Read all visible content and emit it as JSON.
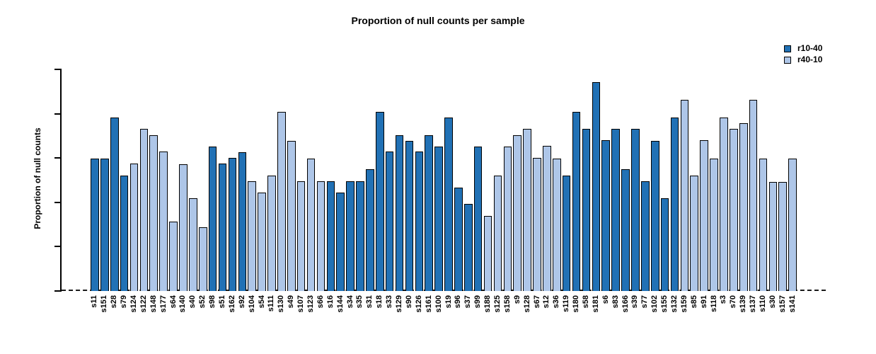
{
  "chart_data": {
    "type": "bar",
    "title": "Proportion of null counts per sample",
    "ylabel": "Proportion of null counts",
    "xlabel": "",
    "ylim": [
      0,
      50
    ],
    "yticks": [
      0,
      10,
      20,
      30,
      40,
      50
    ],
    "grid": false,
    "legend_position": "top-right",
    "zero_line_style": "dashed",
    "axis_color": "#000000",
    "legend": [
      {
        "label": "r10-40",
        "color": "#2171B5"
      },
      {
        "label": "r40-10",
        "color": "#AEC6E8"
      }
    ],
    "samples": [
      {
        "name": "s11",
        "value": 29.9,
        "series": "r10-40"
      },
      {
        "name": "s151",
        "value": 29.9,
        "series": "r10-40"
      },
      {
        "name": "s28",
        "value": 39.2,
        "series": "r10-40"
      },
      {
        "name": "s79",
        "value": 26.1,
        "series": "r10-40"
      },
      {
        "name": "s124",
        "value": 28.7,
        "series": "r40-10"
      },
      {
        "name": "s122",
        "value": 36.6,
        "series": "r40-10"
      },
      {
        "name": "s148",
        "value": 35.2,
        "series": "r40-10"
      },
      {
        "name": "s177",
        "value": 31.4,
        "series": "r40-10"
      },
      {
        "name": "s64",
        "value": 15.6,
        "series": "r40-10"
      },
      {
        "name": "s140",
        "value": 28.6,
        "series": "r40-10"
      },
      {
        "name": "s40",
        "value": 20.9,
        "series": "r40-10"
      },
      {
        "name": "s52",
        "value": 14.3,
        "series": "r40-10"
      },
      {
        "name": "s98",
        "value": 32.6,
        "series": "r10-40"
      },
      {
        "name": "s51",
        "value": 28.7,
        "series": "r10-40"
      },
      {
        "name": "s162",
        "value": 30.0,
        "series": "r10-40"
      },
      {
        "name": "s92",
        "value": 31.3,
        "series": "r10-40"
      },
      {
        "name": "s104",
        "value": 24.7,
        "series": "r40-10"
      },
      {
        "name": "s54",
        "value": 22.2,
        "series": "r40-10"
      },
      {
        "name": "s111",
        "value": 26.1,
        "series": "r40-10"
      },
      {
        "name": "s130",
        "value": 40.4,
        "series": "r40-10"
      },
      {
        "name": "s49",
        "value": 33.9,
        "series": "r40-10"
      },
      {
        "name": "s107",
        "value": 24.7,
        "series": "r40-10"
      },
      {
        "name": "s123",
        "value": 29.9,
        "series": "r40-10"
      },
      {
        "name": "s66",
        "value": 24.7,
        "series": "r40-10"
      },
      {
        "name": "s16",
        "value": 24.7,
        "series": "r10-40"
      },
      {
        "name": "s144",
        "value": 22.2,
        "series": "r10-40"
      },
      {
        "name": "s34",
        "value": 24.7,
        "series": "r10-40"
      },
      {
        "name": "s35",
        "value": 24.7,
        "series": "r10-40"
      },
      {
        "name": "s31",
        "value": 27.4,
        "series": "r10-40"
      },
      {
        "name": "s18",
        "value": 40.4,
        "series": "r10-40"
      },
      {
        "name": "s33",
        "value": 31.4,
        "series": "r10-40"
      },
      {
        "name": "s129",
        "value": 35.2,
        "series": "r10-40"
      },
      {
        "name": "s90",
        "value": 33.8,
        "series": "r10-40"
      },
      {
        "name": "s126",
        "value": 31.4,
        "series": "r10-40"
      },
      {
        "name": "s161",
        "value": 35.1,
        "series": "r10-40"
      },
      {
        "name": "s100",
        "value": 32.6,
        "series": "r10-40"
      },
      {
        "name": "s19",
        "value": 39.2,
        "series": "r10-40"
      },
      {
        "name": "s96",
        "value": 23.3,
        "series": "r10-40"
      },
      {
        "name": "s37",
        "value": 19.6,
        "series": "r10-40"
      },
      {
        "name": "s99",
        "value": 32.6,
        "series": "r10-40"
      },
      {
        "name": "s188",
        "value": 16.9,
        "series": "r40-10"
      },
      {
        "name": "s125",
        "value": 26.1,
        "series": "r40-10"
      },
      {
        "name": "s158",
        "value": 32.6,
        "series": "r40-10"
      },
      {
        "name": "s9",
        "value": 35.2,
        "series": "r40-10"
      },
      {
        "name": "s128",
        "value": 36.6,
        "series": "r40-10"
      },
      {
        "name": "s67",
        "value": 30.0,
        "series": "r40-10"
      },
      {
        "name": "s12",
        "value": 32.7,
        "series": "r40-10"
      },
      {
        "name": "s36",
        "value": 29.9,
        "series": "r40-10"
      },
      {
        "name": "s119",
        "value": 26.1,
        "series": "r10-40"
      },
      {
        "name": "s180",
        "value": 40.4,
        "series": "r10-40"
      },
      {
        "name": "s58",
        "value": 36.6,
        "series": "r10-40"
      },
      {
        "name": "s181",
        "value": 47.1,
        "series": "r10-40"
      },
      {
        "name": "s6",
        "value": 34.0,
        "series": "r10-40"
      },
      {
        "name": "s83",
        "value": 36.6,
        "series": "r10-40"
      },
      {
        "name": "s166",
        "value": 27.4,
        "series": "r10-40"
      },
      {
        "name": "s39",
        "value": 36.6,
        "series": "r10-40"
      },
      {
        "name": "s77",
        "value": 24.7,
        "series": "r10-40"
      },
      {
        "name": "s102",
        "value": 33.9,
        "series": "r10-40"
      },
      {
        "name": "s155",
        "value": 21.0,
        "series": "r10-40"
      },
      {
        "name": "s132",
        "value": 39.2,
        "series": "r10-40"
      },
      {
        "name": "s159",
        "value": 43.2,
        "series": "r40-10"
      },
      {
        "name": "s85",
        "value": 26.1,
        "series": "r40-10"
      },
      {
        "name": "s91",
        "value": 34.0,
        "series": "r40-10"
      },
      {
        "name": "s118",
        "value": 29.8,
        "series": "r40-10"
      },
      {
        "name": "s3",
        "value": 39.1,
        "series": "r40-10"
      },
      {
        "name": "s70",
        "value": 36.6,
        "series": "r40-10"
      },
      {
        "name": "s139",
        "value": 37.9,
        "series": "r40-10"
      },
      {
        "name": "s137",
        "value": 43.1,
        "series": "r40-10"
      },
      {
        "name": "s110",
        "value": 29.8,
        "series": "r40-10"
      },
      {
        "name": "s30",
        "value": 24.6,
        "series": "r40-10"
      },
      {
        "name": "s157",
        "value": 24.6,
        "series": "r40-10"
      },
      {
        "name": "s141",
        "value": 29.8,
        "series": "r40-10"
      }
    ]
  }
}
